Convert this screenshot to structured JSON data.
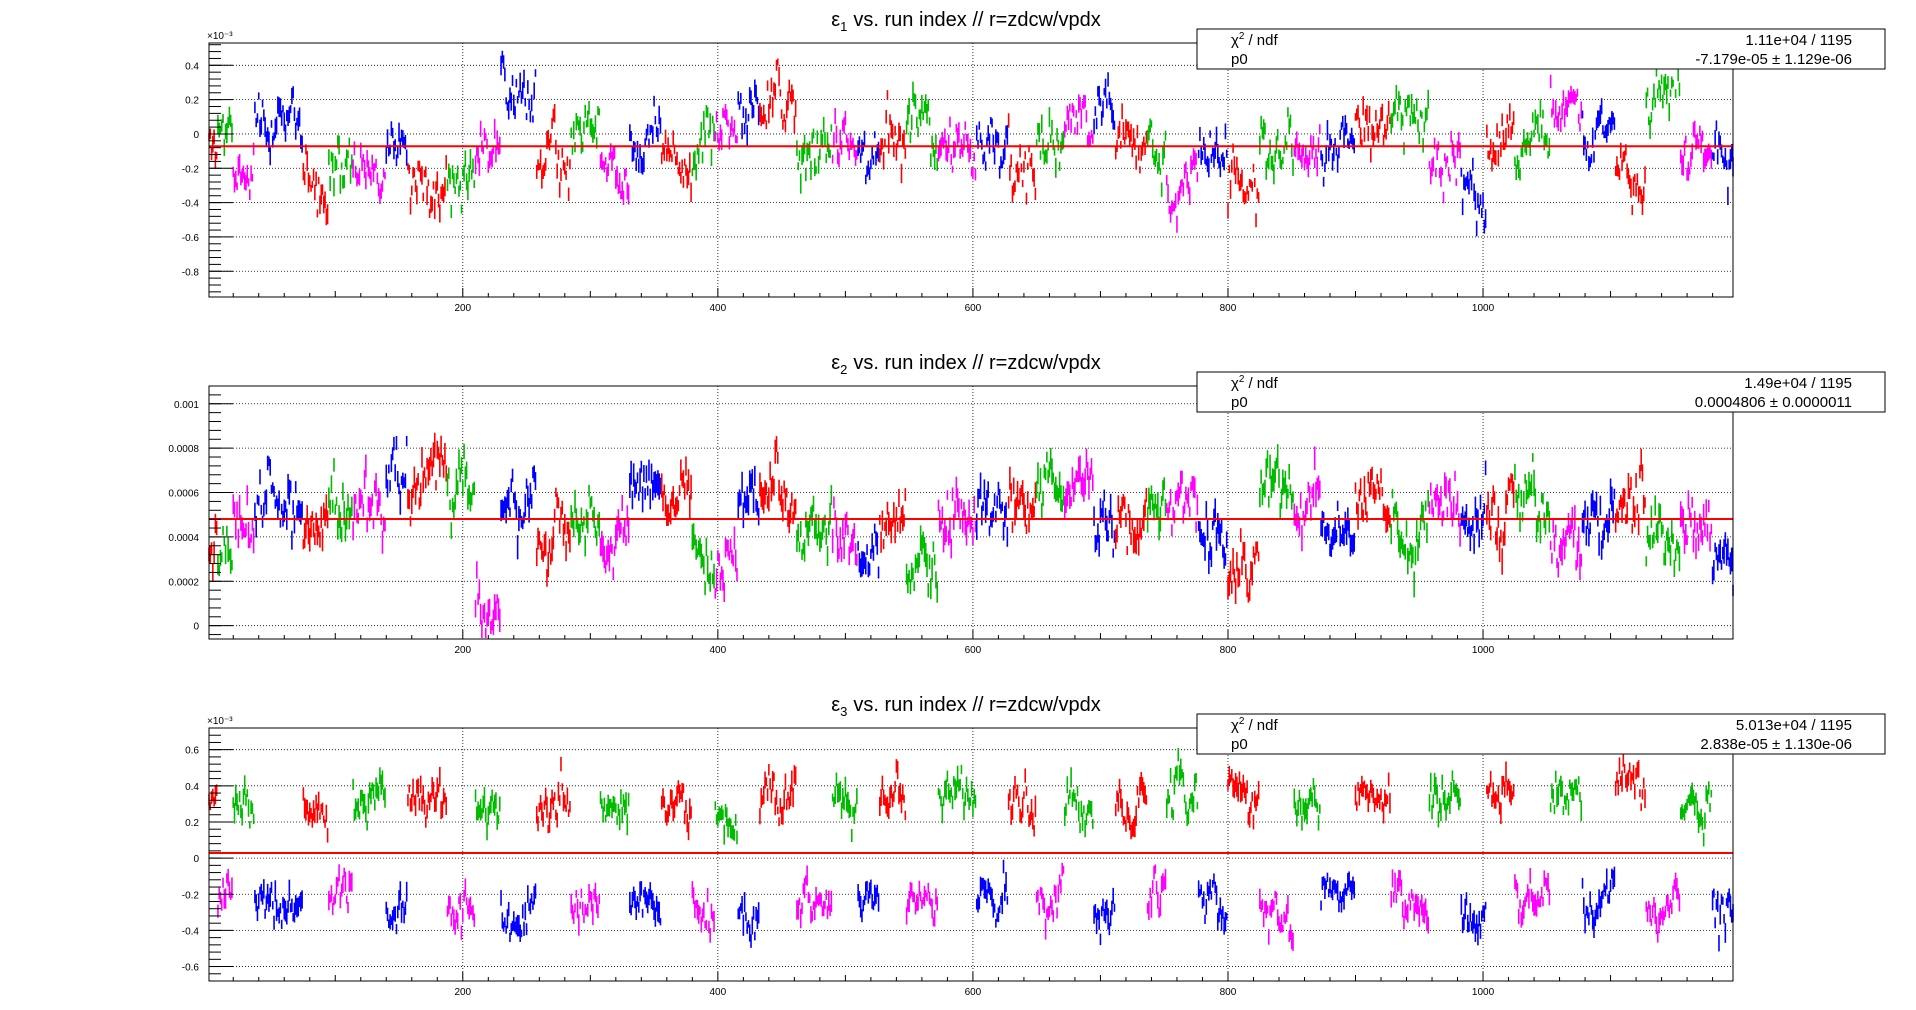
{
  "chart_data": [
    {
      "type": "scatter",
      "title_symbol": "ε",
      "title_sub": "1",
      "title_rest": "vs. run index // r=zdcw/vpdx",
      "xlim": [
        1,
        1196
      ],
      "ylim": [
        -0.00095,
        0.00053
      ],
      "y_multiplier": "×10⁻³",
      "x_ticks": [
        "200",
        "400",
        "600",
        "800",
        "1000"
      ],
      "x_tick_values": [
        200,
        400,
        600,
        800,
        1000
      ],
      "y_ticks": [
        "0.4",
        "0.2",
        "0",
        "-0.2",
        "-0.4",
        "-0.6",
        "-0.8"
      ],
      "y_tick_values": [
        0.0004,
        0.0002,
        0,
        -0.0002,
        -0.0004,
        -0.0006,
        -0.0008
      ],
      "grid": true,
      "fit": {
        "p0": -7.179e-05
      },
      "stats": {
        "row1_label": "χ",
        "row1_sup": "2",
        "row1_rest": "/ ndf",
        "row1_value": "1.11e+04 / 1195",
        "row2_label": "p0",
        "row2_value": "-7.179e-05 ± 1.129e-06"
      },
      "model": {
        "std": 0.00011,
        "amp": 0.00013,
        "err": 4e-05,
        "seed": 11
      }
    },
    {
      "type": "scatter",
      "title_symbol": "ε",
      "title_sub": "2",
      "title_rest": "vs. run index // r=zdcw/vpdx",
      "xlim": [
        1,
        1196
      ],
      "ylim": [
        -6e-05,
        0.00108
      ],
      "y_multiplier": "",
      "x_ticks": [
        "200",
        "400",
        "600",
        "800",
        "1000"
      ],
      "x_tick_values": [
        200,
        400,
        600,
        800,
        1000
      ],
      "y_ticks": [
        "0.001",
        "0.0008",
        "0.0006",
        "0.0004",
        "0.0002",
        "0"
      ],
      "y_tick_values": [
        0.001,
        0.0008,
        0.0006,
        0.0004,
        0.0002,
        0
      ],
      "grid": true,
      "fit": {
        "p0": 0.0004806
      },
      "stats": {
        "row1_label": "χ",
        "row1_sup": "2",
        "row1_rest": "/ ndf",
        "row1_value": "1.49e+04 / 1195",
        "row2_label": "p0",
        "row2_value": "0.0004806 ± 0.0000011"
      },
      "model": {
        "std": 9e-05,
        "amp": 0.00012,
        "err": 4e-05,
        "seed": 23
      }
    },
    {
      "type": "scatter",
      "title_symbol": "ε",
      "title_sub": "3",
      "title_rest": "vs. run index // r=zdcw/vpdx",
      "xlim": [
        1,
        1196
      ],
      "ylim": [
        -0.00068,
        0.00072
      ],
      "y_multiplier": "×10⁻³",
      "x_ticks": [
        "200",
        "400",
        "600",
        "800",
        "1000"
      ],
      "x_tick_values": [
        200,
        400,
        600,
        800,
        1000
      ],
      "y_ticks": [
        "0.6",
        "0.4",
        "0.2",
        "0",
        "-0.2",
        "-0.4",
        "-0.6"
      ],
      "y_tick_values": [
        0.0006,
        0.0004,
        0.0002,
        0,
        -0.0002,
        -0.0004,
        -0.0006
      ],
      "grid": true,
      "fit": {
        "p0": 2.838e-05
      },
      "stats": {
        "row1_label": "χ",
        "row1_sup": "2",
        "row1_rest": "/ ndf",
        "row1_value": "5.013e+04 / 1195",
        "row2_label": "p0",
        "row2_value": "2.838e-05 ± 1.130e-06"
      },
      "model": {
        "std": 8e-05,
        "amp": 9e-05,
        "err": 4e-05,
        "seed": 37,
        "alternating": true,
        "offset": 0.00028
      }
    }
  ],
  "series_colors": [
    "#ff0000",
    "#00bb00",
    "#ff00ff",
    "#0000ff"
  ],
  "fit_color": "#ff0000",
  "segment_starts": [
    1,
    8,
    20,
    37,
    75,
    95,
    114,
    140,
    157,
    188,
    210,
    230,
    258,
    285,
    308,
    331,
    356,
    380,
    398,
    416,
    433,
    462,
    490,
    510,
    527,
    548,
    573,
    603,
    628,
    650,
    672,
    695,
    712,
    737,
    752,
    777,
    800,
    825,
    852,
    873,
    900,
    928,
    958,
    983,
    1003,
    1025,
    1053,
    1078,
    1104,
    1128,
    1155,
    1180
  ]
}
